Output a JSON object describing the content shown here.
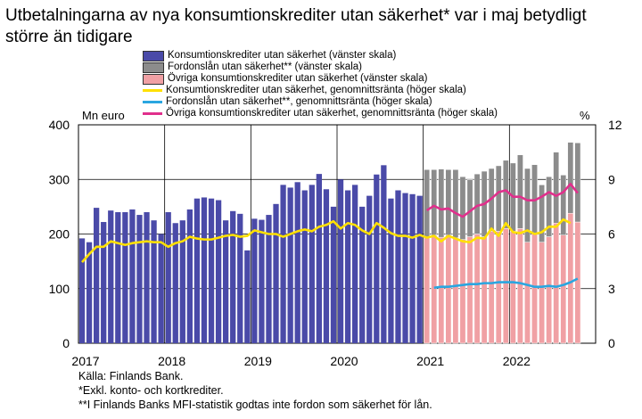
{
  "title": "Utbetalningarna av nya konsumtionskrediter utan säkerhet* var i maj betydligt större än tidigare",
  "legend": [
    {
      "label": "Konsumtionskrediter utan säkerhet (vänster skala)",
      "kind": "box",
      "color": "#4a4aa8"
    },
    {
      "label": "Fordonslån utan säkerhet** (vänster skala)",
      "kind": "box",
      "color": "#8c8c8c"
    },
    {
      "label": "Övriga konsumtionskrediter utan säkerhet (vänster skala)",
      "kind": "box",
      "color": "#f0a0a4"
    },
    {
      "label": "Konsumtionskrediter utan säkerhet, genomnittsränta (höger skala)",
      "kind": "line",
      "color": "#ffe000"
    },
    {
      "label": "Fordonslån utan säkerhet**, genomnittsränta (höger skala)",
      "kind": "line",
      "color": "#2aa6e0"
    },
    {
      "label": "Övriga konsumtionskrediter utan säkerhet, genomnittsränta (höger skala)",
      "kind": "line",
      "color": "#e0308c"
    }
  ],
  "notes": [
    "Källa: Finlands Bank.",
    "*Exkl. konto- och kortkrediter.",
    "**I Finlands Banks MFI-statistik godtas inte fordon som säkerhet för lån."
  ],
  "chart_data": {
    "type": "bar",
    "left_unit": "Mn euro",
    "right_unit": "%",
    "left_ticks": [
      "0",
      "100",
      "200",
      "300",
      "400"
    ],
    "right_ticks": [
      "0",
      "3",
      "6",
      "9",
      "12"
    ],
    "ylim_left": [
      0,
      400
    ],
    "ylim_right": [
      0,
      12
    ],
    "x_tick_labels": [
      "2017",
      "2018",
      "2019",
      "2020",
      "2021",
      "2022"
    ],
    "x_start": "2017-01",
    "period": "monthly",
    "grid": true,
    "bars_konsumtionskrediter": [
      192,
      185,
      248,
      222,
      243,
      240,
      240,
      245,
      235,
      240,
      225,
      200,
      240,
      220,
      225,
      245,
      265,
      267,
      265,
      262,
      225,
      242,
      237,
      170,
      228,
      226,
      235,
      255,
      290,
      285,
      295,
      280,
      290,
      310,
      282,
      250,
      300,
      280,
      290,
      250,
      270,
      309,
      326,
      265,
      280,
      275,
      273,
      270,
      255,
      265
    ],
    "bars_fordonslan": [
      125,
      120,
      125,
      120,
      125,
      115,
      105,
      110,
      120,
      115,
      120,
      125,
      125,
      135,
      135,
      125,
      105,
      110,
      130,
      110,
      130,
      145
    ],
    "bars_ovriga": [
      193,
      198,
      194,
      198,
      193,
      190,
      195,
      200,
      195,
      205,
      205,
      210,
      205,
      210,
      185,
      202,
      185,
      195,
      220,
      198,
      238,
      222
    ],
    "line_konsumtionskrediter_rate": [
      4.45,
      4.9,
      5.3,
      5.3,
      5.6,
      5.5,
      5.4,
      5.5,
      5.55,
      5.6,
      5.55,
      5.55,
      5.3,
      5.5,
      5.6,
      5.85,
      5.75,
      5.7,
      5.7,
      5.8,
      5.9,
      5.95,
      5.85,
      5.9,
      6.2,
      6.1,
      6.0,
      6.0,
      5.85,
      6.0,
      6.15,
      6.25,
      6.15,
      6.4,
      6.5,
      6.7,
      6.3,
      6.6,
      6.5,
      6.2,
      6.0,
      6.6,
      6.35,
      6.05,
      5.9,
      5.9,
      5.8,
      5.95,
      5.8,
      5.9,
      5.6,
      5.9,
      5.75,
      5.6,
      5.55,
      5.8,
      5.75,
      6.3,
      5.9,
      6.6,
      6.1,
      6.05,
      6.2,
      6.0,
      6.1,
      6.4,
      6.4,
      6.8,
      6.6
    ],
    "line_fordonslan_rate": [
      3.05,
      3.1,
      3.1,
      3.15,
      3.2,
      3.25,
      3.25,
      3.3,
      3.3,
      3.35,
      3.35,
      3.35,
      3.3,
      3.2,
      3.1,
      3.1,
      3.15,
      3.1,
      3.2,
      3.35,
      3.55
    ],
    "line_ovriga_rate": [
      7.3,
      7.55,
      7.35,
      7.4,
      7.15,
      6.95,
      7.25,
      7.55,
      7.65,
      7.95,
      8.3,
      8.4,
      8.05,
      8.05,
      7.85,
      7.85,
      8.05,
      8.3,
      8.1,
      8.3,
      8.75,
      8.25
    ]
  }
}
